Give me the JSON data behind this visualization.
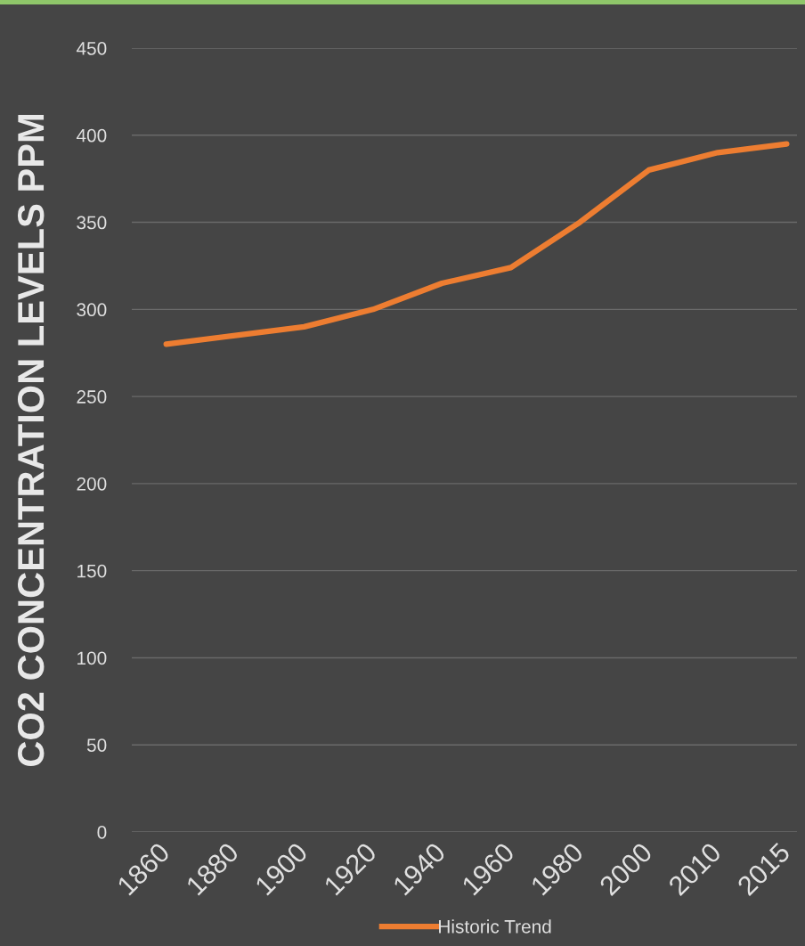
{
  "chart_data": {
    "type": "line",
    "ylabel": "CO2 CONCENTRATION LEVELS PPM",
    "categories": [
      "1860",
      "1880",
      "1900",
      "1920",
      "1940",
      "1960",
      "1980",
      "2000",
      "2010",
      "2015"
    ],
    "series": [
      {
        "name": "Historic Trend",
        "color": "#ed7d31",
        "values": [
          280,
          285,
          290,
          300,
          315,
          324,
          350,
          380,
          390,
          395
        ]
      }
    ],
    "ylim": [
      0,
      450
    ],
    "yticks": [
      0,
      50,
      100,
      150,
      200,
      250,
      300,
      350,
      400,
      450
    ],
    "grid": "y",
    "legend": "bottom",
    "marker": "none",
    "line_style": "solid"
  }
}
